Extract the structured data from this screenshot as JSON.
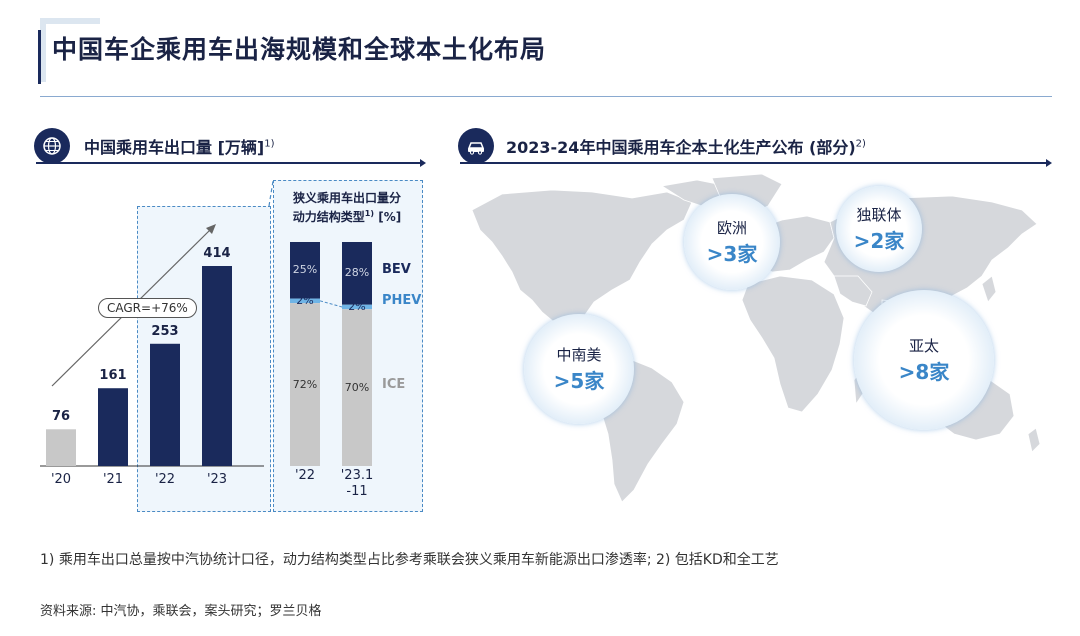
{
  "page": {
    "title": "中国车企乘用车出海规模和全球本土化布局"
  },
  "left_section": {
    "title": "中国乘用车出口量 [万辆]",
    "sup": "1)"
  },
  "right_section": {
    "title": "2023-24年中国乘用车企本土化生产公布 (部分)",
    "sup": "2)"
  },
  "cagr_label": "CAGR=+76%",
  "structure_title_line1": "狭义乘用车出口量分",
  "structure_title_line2": "动力结构类型",
  "structure_title_sup": "1)",
  "structure_title_unit": "[%]",
  "chart_data": [
    {
      "type": "bar",
      "title": "中国乘用车出口量 [万辆]",
      "categories": [
        "'20",
        "'21",
        "'22",
        "'23"
      ],
      "values": [
        76,
        161,
        253,
        414
      ],
      "annotation": "CAGR=+76%",
      "colors": [
        "#c8c8c8",
        "#1a2a5c",
        "#1a2a5c",
        "#1a2a5c"
      ]
    },
    {
      "type": "bar",
      "stacked": true,
      "title": "狭义乘用车出口量分动力结构类型 [%]",
      "categories": [
        "'22",
        "'23.1 -11"
      ],
      "series": [
        {
          "name": "ICE",
          "values": [
            72,
            70
          ],
          "color": "#c8c8c8"
        },
        {
          "name": "PHEV",
          "values": [
            2,
            2
          ],
          "color": "#6fb4e6"
        },
        {
          "name": "BEV",
          "values": [
            25,
            28
          ],
          "color": "#1a2a5c"
        }
      ],
      "labels": {
        "ICE": [
          "72%",
          "70%"
        ],
        "PHEV": [
          "2%",
          "2%"
        ],
        "BEV": [
          "25%",
          "28%"
        ]
      }
    }
  ],
  "regions": [
    {
      "name": "欧洲",
      "count": ">3家"
    },
    {
      "name": "独联体",
      "count": ">2家"
    },
    {
      "name": "中南美",
      "count": ">5家"
    },
    {
      "name": "亚太",
      "count": ">8家"
    }
  ],
  "footnote": "1) 乘用车出口总量按中汽协统计口径，动力结构类型占比参考乘联会狭义乘用车新能源出口渗透率; 2) 包括KD和全工艺",
  "source": "资料来源: 中汽协，乘联会，案头研究；罗兰贝格"
}
